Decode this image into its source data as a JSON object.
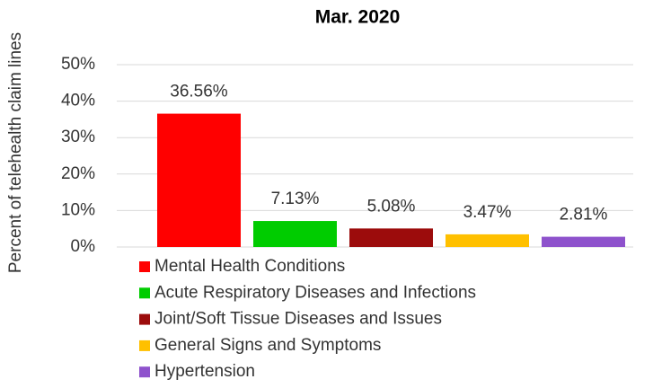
{
  "chart_data": {
    "type": "bar",
    "title": "Mar. 2020",
    "y_label": "Percent of telehealth claim lines",
    "categories": [
      "Mental Health Conditions",
      "Acute Respiratory Diseases and Infections",
      "Joint/Soft Tissue Diseases and Issues",
      "General Signs and Symptoms",
      "Hypertension"
    ],
    "values": [
      36.56,
      7.13,
      5.08,
      3.47,
      2.81
    ],
    "value_labels": [
      "36.56%",
      "7.13%",
      "5.08%",
      "3.47%",
      "2.81%"
    ],
    "colors": [
      "#ff0000",
      "#00cc00",
      "#9c0c0c",
      "#ffc000",
      "#8e52cc"
    ],
    "ylim": [
      0,
      50
    ],
    "yticks": [
      {
        "value": 0,
        "label": "0%"
      },
      {
        "value": 10,
        "label": "10%"
      },
      {
        "value": 20,
        "label": "20%"
      },
      {
        "value": 30,
        "label": "30%"
      },
      {
        "value": 40,
        "label": "40%"
      },
      {
        "value": 50,
        "label": "50%"
      }
    ],
    "grid": true,
    "legend": "bottom"
  }
}
